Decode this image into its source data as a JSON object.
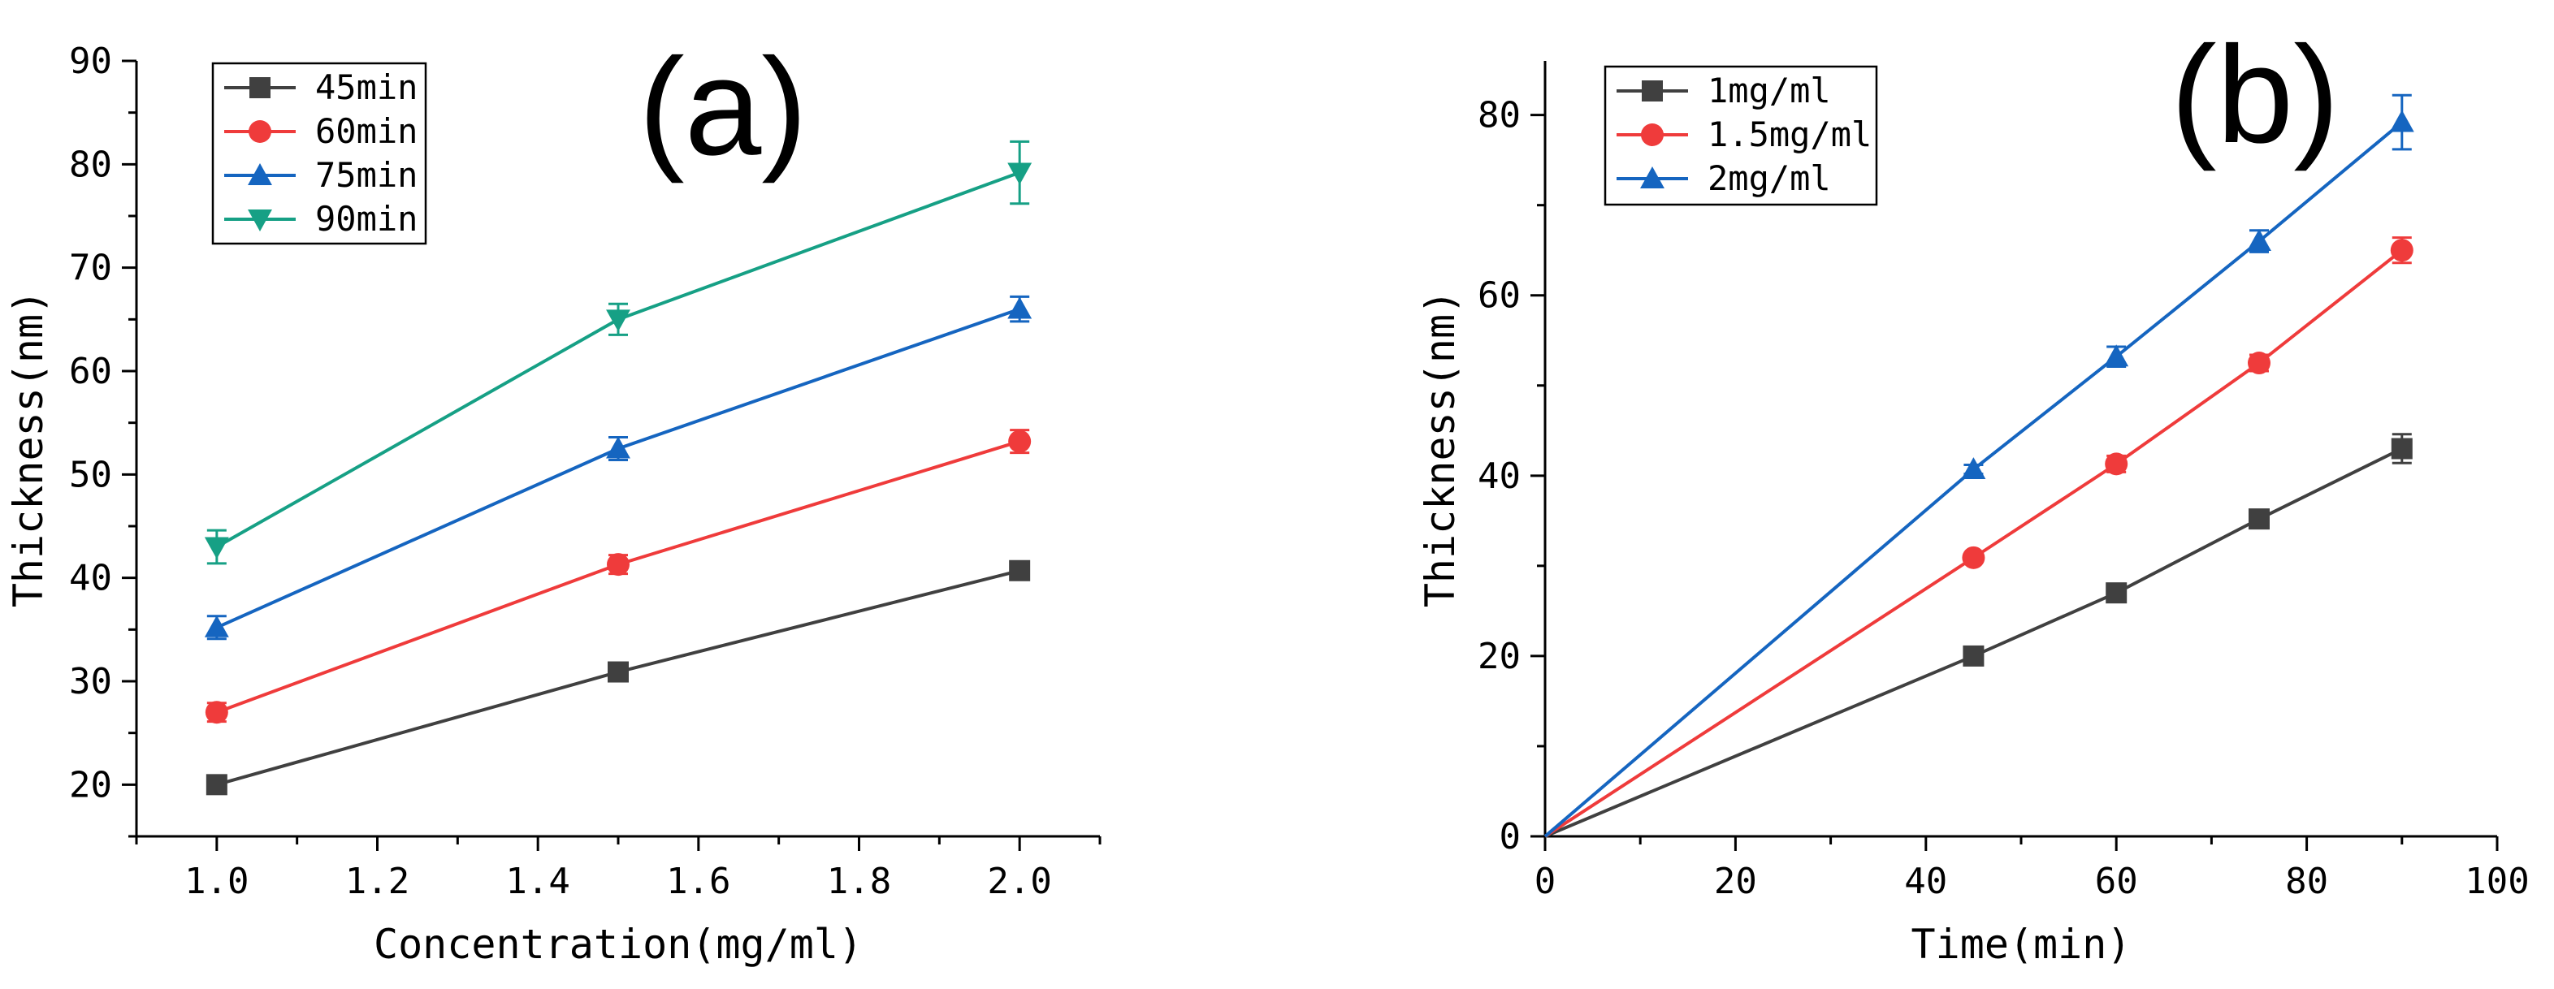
{
  "chart_data": [
    {
      "type": "line",
      "panel_label": "(a)",
      "xlabel": "Concentration(mg/ml)",
      "ylabel": "Thickness(nm)",
      "xlim": [
        0.9,
        2.1
      ],
      "ylim": [
        15,
        90
      ],
      "xticks": [
        1.0,
        1.2,
        1.4,
        1.6,
        1.8,
        2.0
      ],
      "xtick_labels": [
        "1.0",
        "1.2",
        "1.4",
        "1.6",
        "1.8",
        "2.0"
      ],
      "yticks": [
        20,
        30,
        40,
        50,
        60,
        70,
        80,
        90
      ],
      "ytick_labels": [
        "20",
        "30",
        "40",
        "50",
        "60",
        "70",
        "80",
        "90"
      ],
      "grid": false,
      "legend_position": "top-left",
      "x": [
        1.0,
        1.5,
        2.0
      ],
      "series": [
        {
          "name": "45min",
          "color": "#404040",
          "marker": "square",
          "values": [
            20.0,
            30.9,
            40.7
          ],
          "errors": [
            0.4,
            0.5,
            0.5
          ]
        },
        {
          "name": "60min",
          "color": "#ef3b3b",
          "marker": "circle",
          "values": [
            27.0,
            41.3,
            53.2
          ],
          "errors": [
            0.9,
            0.9,
            1.1
          ]
        },
        {
          "name": "75min",
          "color": "#1565c0",
          "marker": "triangle-up",
          "values": [
            35.2,
            52.5,
            66.0
          ],
          "errors": [
            1.1,
            1.1,
            1.2
          ]
        },
        {
          "name": "90min",
          "color": "#16a085",
          "marker": "triangle-down",
          "values": [
            43.0,
            65.0,
            79.2
          ],
          "errors": [
            1.6,
            1.5,
            3.0
          ]
        }
      ]
    },
    {
      "type": "line",
      "panel_label": "(b)",
      "xlabel": "Time(min)",
      "ylabel": "Thickness(nm)",
      "xlim": [
        0,
        100
      ],
      "ylim": [
        0,
        86
      ],
      "xticks": [
        0,
        20,
        40,
        60,
        80,
        100
      ],
      "xtick_labels": [
        "0",
        "20",
        "40",
        "60",
        "80",
        "100"
      ],
      "yticks": [
        0,
        20,
        40,
        60,
        80
      ],
      "ytick_labels": [
        "0",
        "20",
        "40",
        "60",
        "80"
      ],
      "grid": false,
      "legend_position": "top-left",
      "x": [
        0,
        45,
        60,
        75,
        90
      ],
      "series": [
        {
          "name": "1mg/ml",
          "color": "#404040",
          "marker": "square",
          "values": [
            0,
            20.0,
            27.0,
            35.2,
            43.0
          ],
          "errors": [
            0,
            0.4,
            0.8,
            1.0,
            1.6
          ]
        },
        {
          "name": "1.5mg/ml",
          "color": "#ef3b3b",
          "marker": "circle",
          "values": [
            0,
            30.9,
            41.3,
            52.5,
            65.0
          ],
          "errors": [
            0,
            0.4,
            0.9,
            0.9,
            1.4
          ]
        },
        {
          "name": "2mg/ml",
          "color": "#1565c0",
          "marker": "triangle-up",
          "values": [
            0,
            40.7,
            53.2,
            66.0,
            79.2
          ],
          "errors": [
            0,
            0.5,
            1.1,
            1.2,
            3.0
          ]
        }
      ]
    }
  ]
}
